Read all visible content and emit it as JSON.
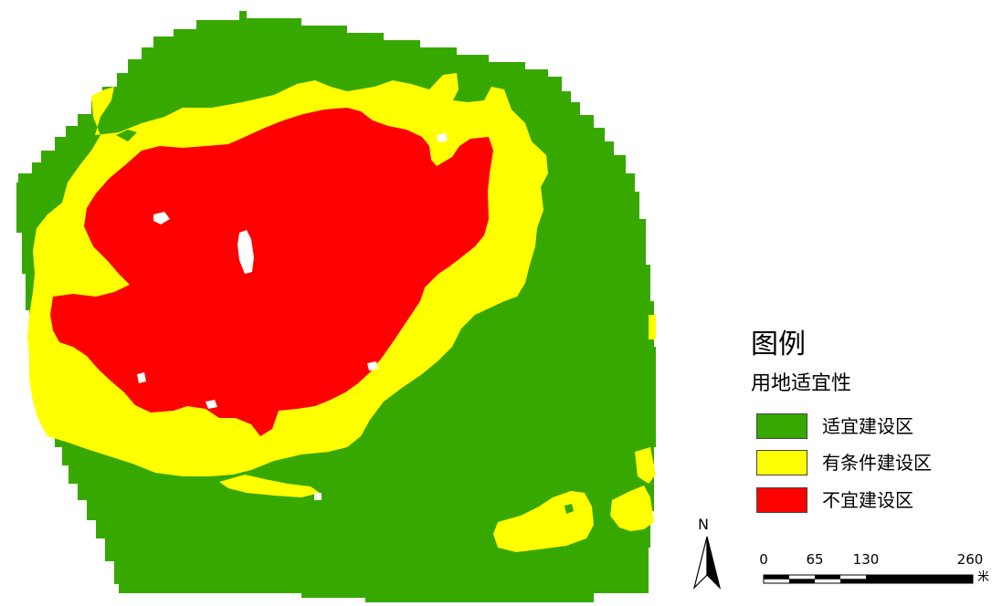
{
  "legend": {
    "title": "图例",
    "subtitle": "用地适宜性",
    "items": [
      {
        "label": "适宜建设区",
        "color": "#37a800"
      },
      {
        "label": "有条件建设区",
        "color": "#ffff00"
      },
      {
        "label": "不宜建设区",
        "color": "#ff0000"
      }
    ]
  },
  "north_arrow": {
    "label": "N"
  },
  "scale_bar": {
    "ticks": [
      "0",
      "65",
      "130",
      "260"
    ],
    "unit": "米"
  },
  "colors": {
    "suitable": "#37a800",
    "conditional": "#ffff00",
    "unsuitable": "#ff0000"
  }
}
